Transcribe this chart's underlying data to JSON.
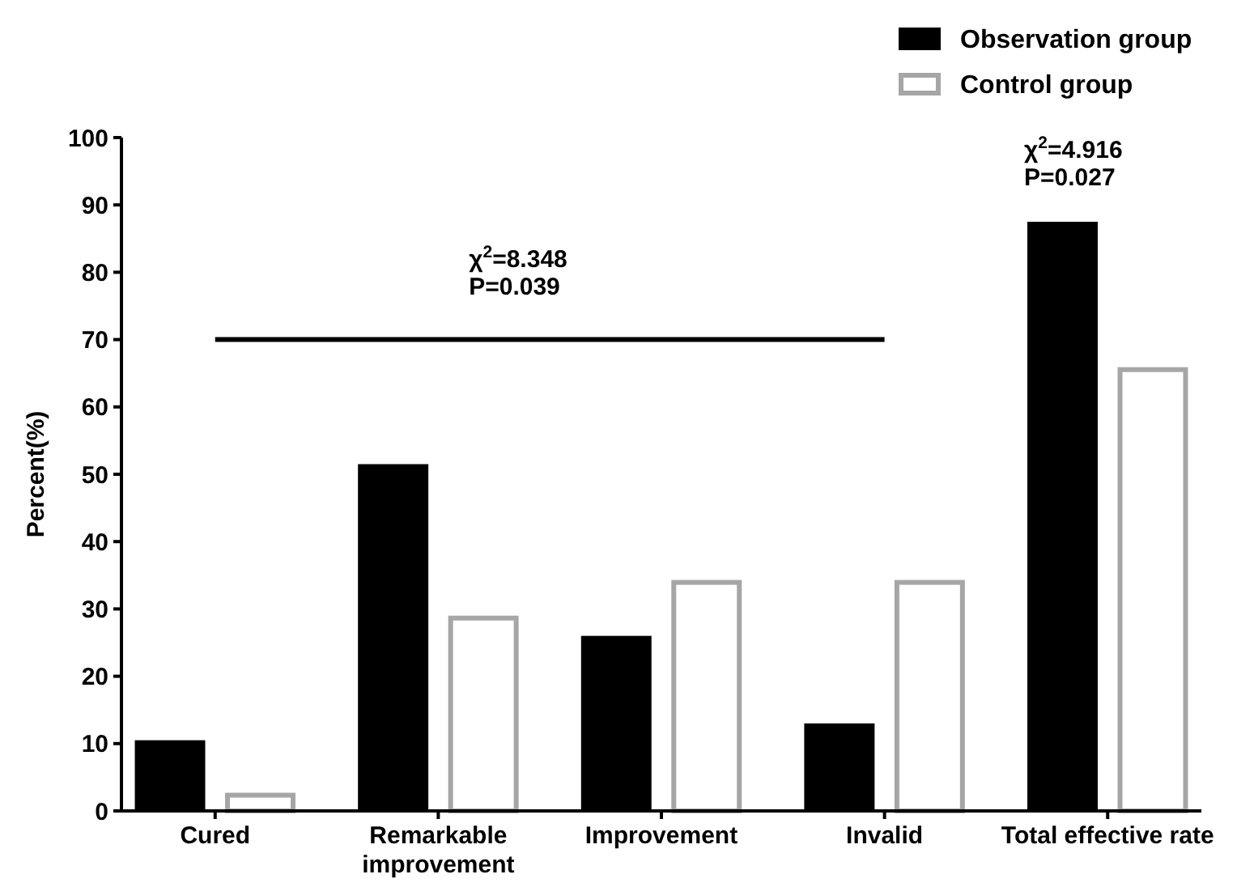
{
  "chart_data": {
    "type": "bar",
    "ylabel": "Percent(%)",
    "categories": [
      "Cured",
      "Remarkable\nimprovement",
      "Improvement",
      "Invalid",
      "Total effective rate"
    ],
    "series": [
      {
        "name": "Observation group",
        "color": "#000000",
        "values": [
          10.5,
          51.5,
          26,
          13,
          87.5
        ]
      },
      {
        "name": "Control group",
        "color": "#a6a6a6",
        "values": [
          2.7,
          29,
          34.3,
          34.3,
          65.9
        ]
      }
    ],
    "ylim": [
      0,
      100
    ],
    "yticks": [
      0,
      10,
      20,
      30,
      40,
      50,
      60,
      70,
      80,
      90,
      100
    ],
    "annotations": [
      "χ$^{2}$=8.348\nP=0.039",
      "χ$^{2}$=4.916\nP=0.027"
    ],
    "grid": false,
    "legend": "top right"
  }
}
